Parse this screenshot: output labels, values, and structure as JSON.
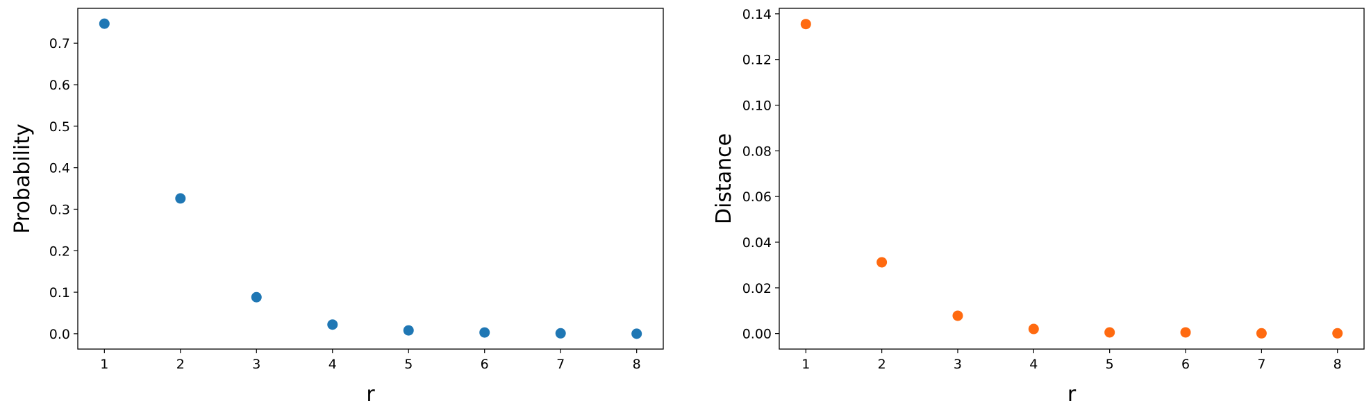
{
  "chart_data": [
    {
      "type": "scatter",
      "title": "",
      "xlabel": "r",
      "ylabel": "Probability",
      "x": [
        1,
        2,
        3,
        4,
        5,
        6,
        7,
        8
      ],
      "y": [
        0.747,
        0.326,
        0.088,
        0.022,
        0.008,
        0.003,
        0.001,
        0.0
      ],
      "xticks": [
        "1",
        "2",
        "3",
        "4",
        "5",
        "6",
        "7",
        "8"
      ],
      "yticks": [
        "0.0",
        "0.1",
        "0.2",
        "0.3",
        "0.4",
        "0.5",
        "0.6",
        "0.7"
      ],
      "xlim": [
        0.65,
        8.35
      ],
      "ylim": [
        -0.037,
        0.784
      ],
      "color": "#1f77b4",
      "grid": false
    },
    {
      "type": "scatter",
      "title": "",
      "xlabel": "r",
      "ylabel": "Distance",
      "x": [
        1,
        2,
        3,
        4,
        5,
        6,
        7,
        8
      ],
      "y": [
        0.1355,
        0.0312,
        0.0078,
        0.002,
        0.0005,
        0.0005,
        0.0001,
        0.0001
      ],
      "xticks": [
        "1",
        "2",
        "3",
        "4",
        "5",
        "6",
        "7",
        "8"
      ],
      "yticks": [
        "0.00",
        "0.02",
        "0.04",
        "0.06",
        "0.08",
        "0.10",
        "0.12",
        "0.14"
      ],
      "xlim": [
        0.65,
        8.35
      ],
      "ylim": [
        -0.0068,
        0.1424
      ],
      "color": "#ff6a10",
      "grid": false
    }
  ]
}
